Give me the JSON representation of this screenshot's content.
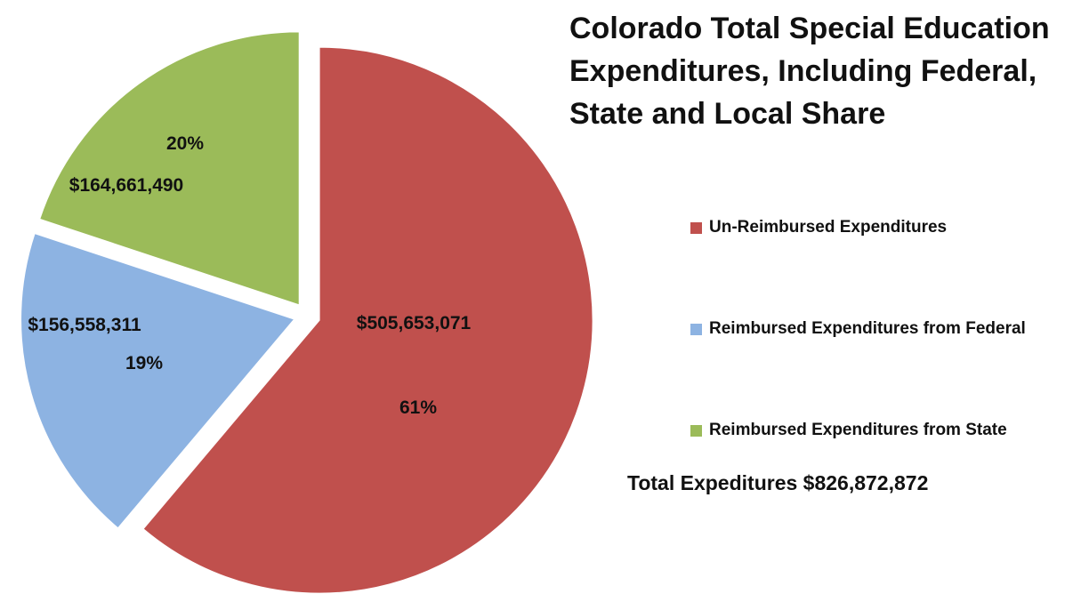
{
  "chart_data": {
    "type": "pie",
    "title": "Colorado Total Special Education Expenditures, Including Federal, State and Local Share",
    "title_lines": [
      "Colorado Total Special Education",
      "Expenditures, Including Federal,",
      "State and Local Share"
    ],
    "slices": [
      {
        "name": "Un-Reimbursed Expenditures",
        "value": 505653071,
        "value_label": "$505,653,071",
        "percent_label": "61%",
        "color": "#c0504d"
      },
      {
        "name": "Reimbursed Expenditures from Federal",
        "value": 156558311,
        "value_label": "$156,558,311",
        "percent_label": "19%",
        "color": "#8db3e2"
      },
      {
        "name": "Reimbursed Expenditures from State",
        "value": 164661490,
        "value_label": "$164,661,490",
        "percent_label": "20%",
        "color": "#9bbb59"
      }
    ],
    "legend_position": "right",
    "annotation": "Total Expeditures $826,872,872"
  }
}
